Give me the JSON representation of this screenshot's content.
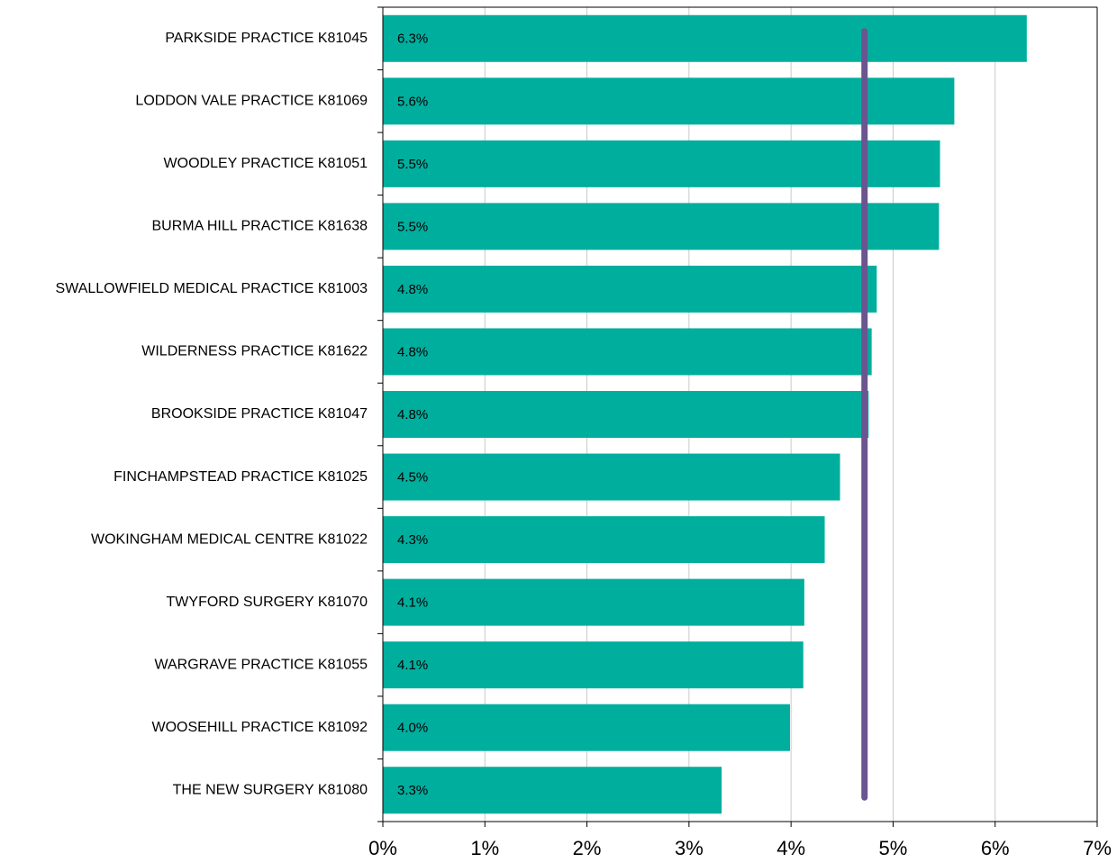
{
  "chart_data": {
    "type": "hbar",
    "categories": [
      "PARKSIDE PRACTICE K81045",
      "LODDON VALE PRACTICE K81069",
      "WOODLEY PRACTICE K81051",
      "BURMA HILL PRACTICE K81638",
      "SWALLOWFIELD MEDICAL PRACTICE K81003",
      "WILDERNESS PRACTICE K81622",
      "BROOKSIDE PRACTICE K81047",
      "FINCHAMPSTEAD PRACTICE K81025",
      "WOKINGHAM MEDICAL CENTRE K81022",
      "TWYFORD SURGERY K81070",
      "WARGRAVE PRACTICE K81055",
      "WOOSEHILL PRACTICE K81092",
      "THE NEW SURGERY K81080"
    ],
    "values": [
      6.31,
      5.6,
      5.46,
      5.45,
      4.84,
      4.79,
      4.76,
      4.48,
      4.33,
      4.13,
      4.12,
      3.99,
      3.32
    ],
    "value_labels": [
      "6.3%",
      "5.6%",
      "5.5%",
      "5.5%",
      "4.8%",
      "4.8%",
      "4.8%",
      "4.5%",
      "4.3%",
      "4.1%",
      "4.1%",
      "4.0%",
      "3.3%"
    ],
    "color": "#00ae9e",
    "xlim": [
      0,
      7
    ],
    "xticks": [
      {
        "value": 0,
        "label": "0%"
      },
      {
        "value": 1,
        "label": "1%"
      },
      {
        "value": 2,
        "label": "2%"
      },
      {
        "value": 3,
        "label": "3%"
      },
      {
        "value": 4,
        "label": "4%"
      },
      {
        "value": 5,
        "label": "5%"
      },
      {
        "value": 6,
        "label": "6%"
      },
      {
        "value": 7,
        "label": "7%"
      }
    ],
    "grid": true,
    "reference_line": {
      "value": 4.72,
      "color": "#6b5590"
    }
  }
}
